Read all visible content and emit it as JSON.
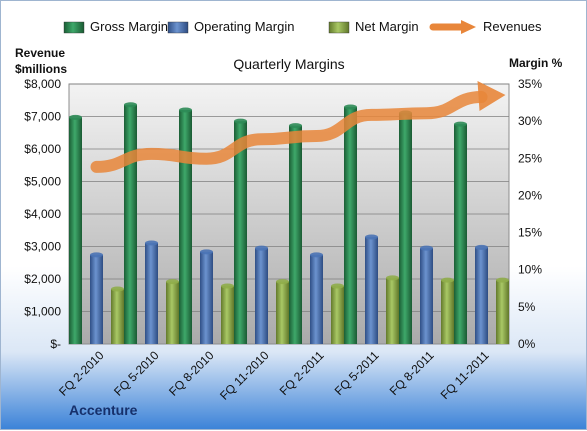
{
  "chart_data": {
    "type": "bar",
    "title": "Quarterly Margins",
    "company": "Accenture",
    "left_axis_label_line1": "Revenue",
    "left_axis_label_line2": "$millions",
    "right_axis_label": "Margin %",
    "categories": [
      "FQ 2-2010",
      "FQ 5-2010",
      "FQ 8-2010",
      "FQ 11-2010",
      "FQ 2-2011",
      "FQ 5-2011",
      "FQ 8-2011",
      "FQ 11-2011"
    ],
    "ylim": [
      0,
      8000
    ],
    "y_ticks": [
      "$-",
      "$1,000",
      "$2,000",
      "$3,000",
      "$4,000",
      "$5,000",
      "$6,000",
      "$7,000",
      "$8,000"
    ],
    "y2lim": [
      0,
      35
    ],
    "y2_ticks": [
      "0%",
      "5%",
      "10%",
      "15%",
      "20%",
      "25%",
      "30%",
      "35%"
    ],
    "grid": true,
    "legend_position": "top",
    "series": [
      {
        "name": "Gross Margin",
        "axis": "right",
        "color": "#2e8b57",
        "values": [
          30.5,
          32.2,
          31.5,
          30.0,
          29.4,
          31.9,
          31.1,
          29.6
        ]
      },
      {
        "name": "Operating Margin",
        "axis": "right",
        "color": "#4a73b5",
        "values": [
          12.0,
          13.6,
          12.4,
          12.9,
          12.0,
          14.4,
          12.9,
          13.0
        ]
      },
      {
        "name": "Net Margin",
        "axis": "right",
        "color": "#8fad4a",
        "values": [
          7.4,
          8.4,
          7.8,
          8.4,
          7.8,
          8.9,
          8.6,
          8.6
        ]
      },
      {
        "name": "Revenues",
        "axis": "left",
        "type": "line",
        "color": "#e8863a",
        "values": [
          5450,
          5850,
          5700,
          6300,
          6400,
          7050,
          7100,
          7600
        ]
      }
    ]
  }
}
